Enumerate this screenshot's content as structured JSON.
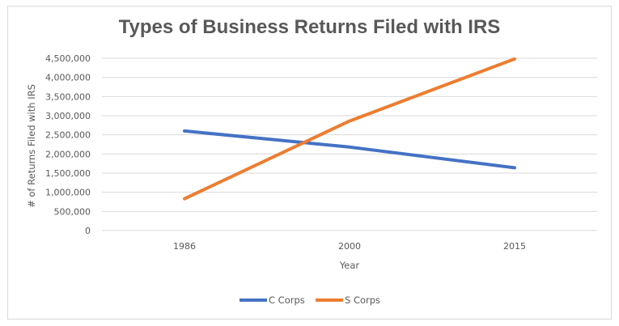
{
  "chart_data": {
    "type": "line",
    "title": "Types of Business Returns Filed with IRS",
    "xlabel": "Year",
    "ylabel": "# of Returns Filed with IRS",
    "categories": [
      "1986",
      "2000",
      "2015"
    ],
    "ylim": [
      0,
      4500000
    ],
    "y_ticks": [
      0,
      500000,
      1000000,
      1500000,
      2000000,
      2500000,
      3000000,
      3500000,
      4000000,
      4500000
    ],
    "y_tick_labels": [
      "0",
      "500,000",
      "1,000,000",
      "1,500,000",
      "2,000,000",
      "2,500,000",
      "3,000,000",
      "3,500,000",
      "4,000,000",
      "4,500,000"
    ],
    "grid": true,
    "legend_position": "bottom",
    "series": [
      {
        "name": "C Corps",
        "values": [
          2600000,
          2180000,
          1640000
        ],
        "color": "#4472c4"
      },
      {
        "name": "S Corps",
        "values": [
          830000,
          2860000,
          4480000
        ],
        "color": "#ed7d31"
      }
    ]
  }
}
